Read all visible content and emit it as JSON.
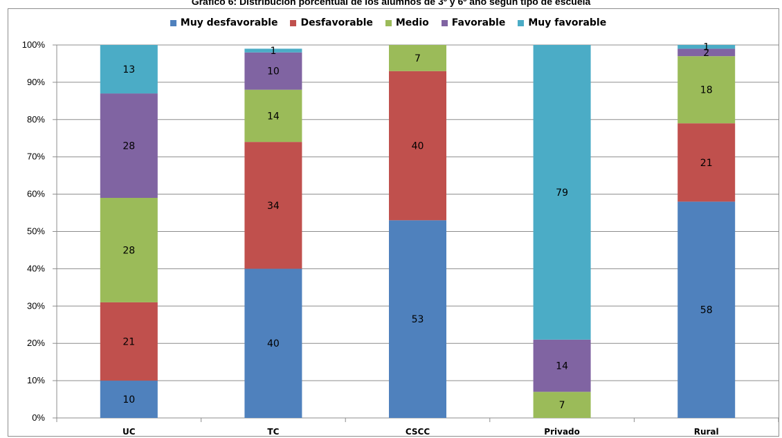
{
  "chart_data": {
    "type": "bar",
    "stacked": true,
    "title": "Gráfico 6: Distribución porcentual de los alumnos de 3º y 6º año según tipo de escuela",
    "categories": [
      "UC",
      "TC",
      "CSCC",
      "Privado",
      "Rural"
    ],
    "series": [
      {
        "name": "Muy desfavorable",
        "color": "#4f81bd",
        "values": [
          10,
          40,
          53,
          0,
          58
        ],
        "labels": [
          "10",
          "40",
          "53",
          "",
          "58"
        ]
      },
      {
        "name": "Desfavorable",
        "color": "#c0504d",
        "values": [
          21,
          34,
          40,
          0,
          21
        ],
        "labels": [
          "21",
          "34",
          "40",
          "",
          "21"
        ]
      },
      {
        "name": "Medio",
        "color": "#9bbb59",
        "values": [
          28,
          14,
          7,
          7,
          18
        ],
        "labels": [
          "28",
          "14",
          "7",
          "7",
          "18"
        ]
      },
      {
        "name": "Favorable",
        "color": "#8064a2",
        "values": [
          28,
          10,
          0,
          14,
          2
        ],
        "labels": [
          "28",
          "10",
          "",
          "14",
          "2"
        ]
      },
      {
        "name": "Muy favorable",
        "color": "#4bacc6",
        "values": [
          13,
          1,
          0,
          79,
          1
        ],
        "labels": [
          "13",
          "1",
          "",
          "79",
          "1"
        ]
      }
    ],
    "yticks": [
      "0%",
      "10%",
      "20%",
      "30%",
      "40%",
      "50%",
      "60%",
      "70%",
      "80%",
      "90%",
      "100%"
    ],
    "ylim": [
      0,
      100
    ],
    "legend_position": "top",
    "grid": true
  }
}
